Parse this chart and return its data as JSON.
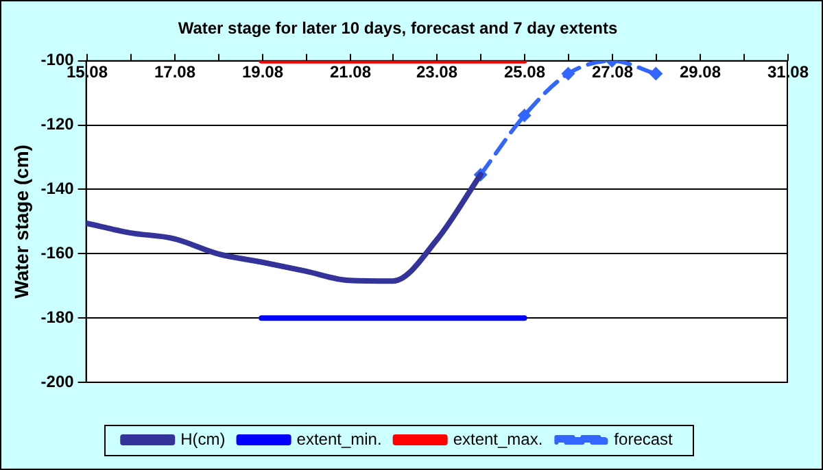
{
  "chart_data": {
    "type": "line",
    "title": "Water stage for later 10 days, forecast and 7 day extents",
    "ylabel": "Water stage (cm)",
    "xlim": [
      "--08-15",
      "--08-31"
    ],
    "xticks": [
      {
        "value": "--08-15",
        "label": "15.08"
      },
      {
        "value": "--08-16",
        "label": null
      },
      {
        "value": "--08-17",
        "label": "17.08"
      },
      {
        "value": "--08-18",
        "label": null
      },
      {
        "value": "--08-19",
        "label": "19.08"
      },
      {
        "value": "--08-20",
        "label": null
      },
      {
        "value": "--08-21",
        "label": "21.08"
      },
      {
        "value": "--08-22",
        "label": null
      },
      {
        "value": "--08-23",
        "label": "23.08"
      },
      {
        "value": "--08-24",
        "label": null
      },
      {
        "value": "--08-25",
        "label": "25.08"
      },
      {
        "value": "--08-26",
        "label": null
      },
      {
        "value": "--08-27",
        "label": "27.08"
      },
      {
        "value": "--08-28",
        "label": null
      },
      {
        "value": "--08-29",
        "label": "29.08"
      },
      {
        "value": "--08-30",
        "label": null
      },
      {
        "value": "--08-31",
        "label": "31.08"
      }
    ],
    "ylim": [
      -200,
      -100
    ],
    "yticks": [
      -200,
      -180,
      -160,
      -140,
      -120,
      -100
    ],
    "grid": "y",
    "legend": "bottom",
    "marker": "none",
    "line_style": "solid",
    "series": [
      {
        "name": "H(cm)",
        "color": "#333399",
        "x": [
          "--08-15",
          "--08-16",
          "--08-17",
          "--08-18",
          "--08-19",
          "--08-20",
          "--08-21",
          "--08-22",
          "--08-23",
          "--08-24"
        ],
        "values": [
          -150.5,
          -153.5,
          -155.3,
          -160,
          -162.6,
          -165.4,
          -168.3,
          -168.5,
          -155.7,
          -135.4
        ]
      },
      {
        "name": "extent_min.",
        "color": "#0000ff",
        "x": [
          "--08-19",
          "--08-25"
        ],
        "values": [
          -180,
          -180
        ]
      },
      {
        "name": "extent_max.",
        "color": "#ff0000",
        "x": [
          "--08-19",
          "--08-25"
        ],
        "values": [
          -100,
          -100
        ]
      },
      {
        "name": "forecast",
        "color": "#3366ff",
        "marker": "diamond",
        "line_style": "dashed",
        "x": [
          "--08-24",
          "--08-25",
          "--08-26",
          "--08-27",
          "--08-28"
        ],
        "values": [
          -135.4,
          -117,
          -104,
          -100,
          -104
        ]
      }
    ]
  }
}
